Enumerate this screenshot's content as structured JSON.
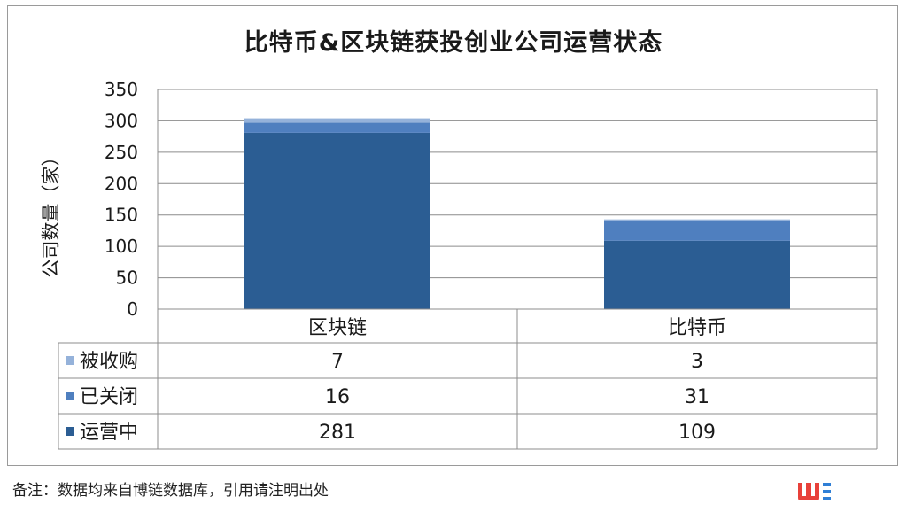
{
  "chart_data": {
    "type": "bar",
    "stacked": true,
    "title": "比特币&区块链获投创业公司运营状态",
    "ylabel": "公司数量（家）",
    "ylim": [
      0,
      350
    ],
    "yticks": [
      0,
      50,
      100,
      150,
      200,
      250,
      300,
      350
    ],
    "categories": [
      "区块链",
      "比特币"
    ],
    "series": [
      {
        "name": "运营中",
        "values": [
          281,
          109
        ],
        "color": "#2b5d93"
      },
      {
        "name": "已关闭",
        "values": [
          16,
          31
        ],
        "color": "#4f7fbf"
      },
      {
        "name": "被收购",
        "values": [
          7,
          3
        ],
        "color": "#95b2da"
      }
    ],
    "table_rows": [
      {
        "name": "被收购",
        "values": [
          "7",
          "3"
        ],
        "color": "#95b2da"
      },
      {
        "name": "已关闭",
        "values": [
          "16",
          "31"
        ],
        "color": "#4f7fbf"
      },
      {
        "name": "运营中",
        "values": [
          "281",
          "109"
        ],
        "color": "#2b5d93"
      }
    ],
    "grid": true
  },
  "footnote": "备注：数据均来自博链数据库，引用请注明出处"
}
